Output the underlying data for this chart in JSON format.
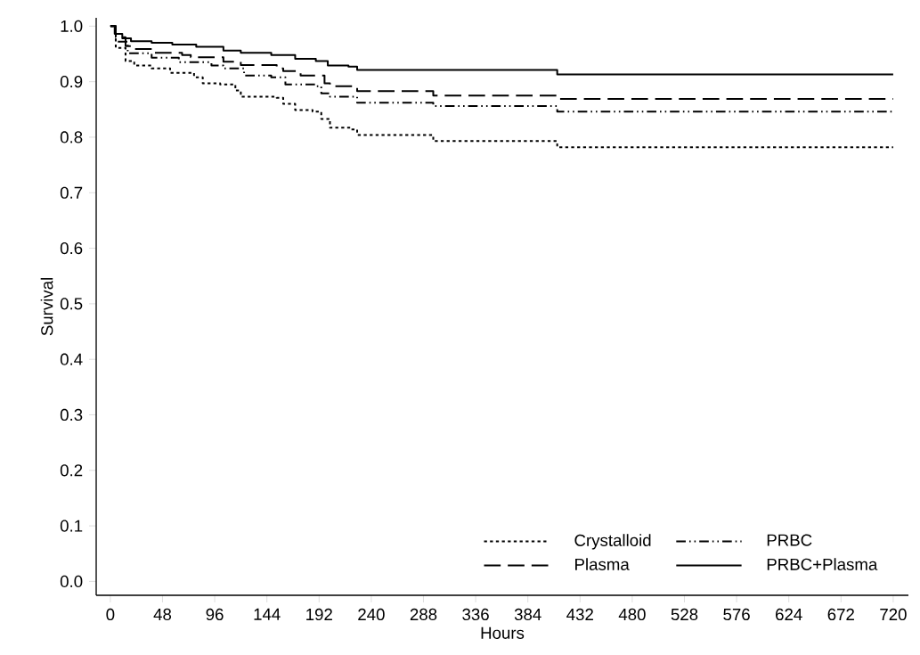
{
  "chart_data": {
    "type": "step",
    "xlabel": "Hours",
    "ylabel": "Survival",
    "xlim": [
      -13,
      734
    ],
    "ylim": [
      -0.025,
      1.015
    ],
    "xticks": [
      0,
      48,
      96,
      144,
      192,
      240,
      288,
      336,
      384,
      432,
      480,
      528,
      576,
      624,
      672,
      720
    ],
    "yticks": [
      {
        "value": 0,
        "label": "0.0"
      },
      {
        "value": 0.1,
        "label": "0.1"
      },
      {
        "value": 0.2,
        "label": "0.2"
      },
      {
        "value": 0.3,
        "label": "0.3"
      },
      {
        "value": 0.4,
        "label": "0.4"
      },
      {
        "value": 0.5,
        "label": "0.5"
      },
      {
        "value": 0.6,
        "label": "0.6"
      },
      {
        "value": 0.7,
        "label": "0.7"
      },
      {
        "value": 0.8,
        "label": "0.8"
      },
      {
        "value": 0.9,
        "label": "0.9"
      },
      {
        "value": 1,
        "label": "1.0"
      }
    ],
    "grid": false,
    "legend": "bottom right",
    "series": [
      {
        "name": "Crystalloid",
        "color": "#000000",
        "line_style": "dotted",
        "x": [
          0,
          5,
          14,
          22,
          38,
          55,
          77,
          85,
          101,
          115,
          120,
          153,
          159,
          170,
          186,
          194,
          202,
          221,
          227,
          297,
          411,
          720
        ],
        "values": [
          1.0,
          0.961,
          0.937,
          0.929,
          0.924,
          0.916,
          0.908,
          0.897,
          0.895,
          0.884,
          0.873,
          0.871,
          0.86,
          0.849,
          0.846,
          0.833,
          0.817,
          0.814,
          0.804,
          0.793,
          0.782,
          0.782
        ]
      },
      {
        "name": "PRBC",
        "color": "#000000",
        "line_style": "dashdotdotted",
        "x": [
          0,
          5,
          16,
          38,
          63,
          93,
          104,
          123,
          148,
          161,
          189,
          194,
          202,
          227,
          297,
          411,
          720
        ],
        "values": [
          1.0,
          0.972,
          0.951,
          0.943,
          0.935,
          0.929,
          0.924,
          0.911,
          0.908,
          0.895,
          0.892,
          0.879,
          0.873,
          0.862,
          0.856,
          0.846,
          0.846
        ]
      },
      {
        "name": "Plasma",
        "color": "#000000",
        "line_style": "dashed",
        "x": [
          0,
          5,
          14,
          22,
          41,
          66,
          74,
          104,
          120,
          153,
          159,
          175,
          197,
          202,
          227,
          297,
          411,
          720
        ],
        "values": [
          1.0,
          0.98,
          0.964,
          0.959,
          0.952,
          0.948,
          0.944,
          0.936,
          0.93,
          0.924,
          0.919,
          0.911,
          0.897,
          0.892,
          0.883,
          0.875,
          0.869,
          0.869
        ]
      },
      {
        "name": "PRBC+Plasma",
        "color": "#000000",
        "line_style": "solid",
        "x": [
          0,
          4,
          11,
          19,
          38,
          57,
          79,
          104,
          120,
          148,
          170,
          189,
          200,
          219,
          227,
          411,
          720
        ],
        "values": [
          1.0,
          0.986,
          0.978,
          0.973,
          0.97,
          0.967,
          0.963,
          0.956,
          0.952,
          0.948,
          0.941,
          0.937,
          0.929,
          0.927,
          0.921,
          0.913,
          0.913
        ]
      }
    ]
  }
}
